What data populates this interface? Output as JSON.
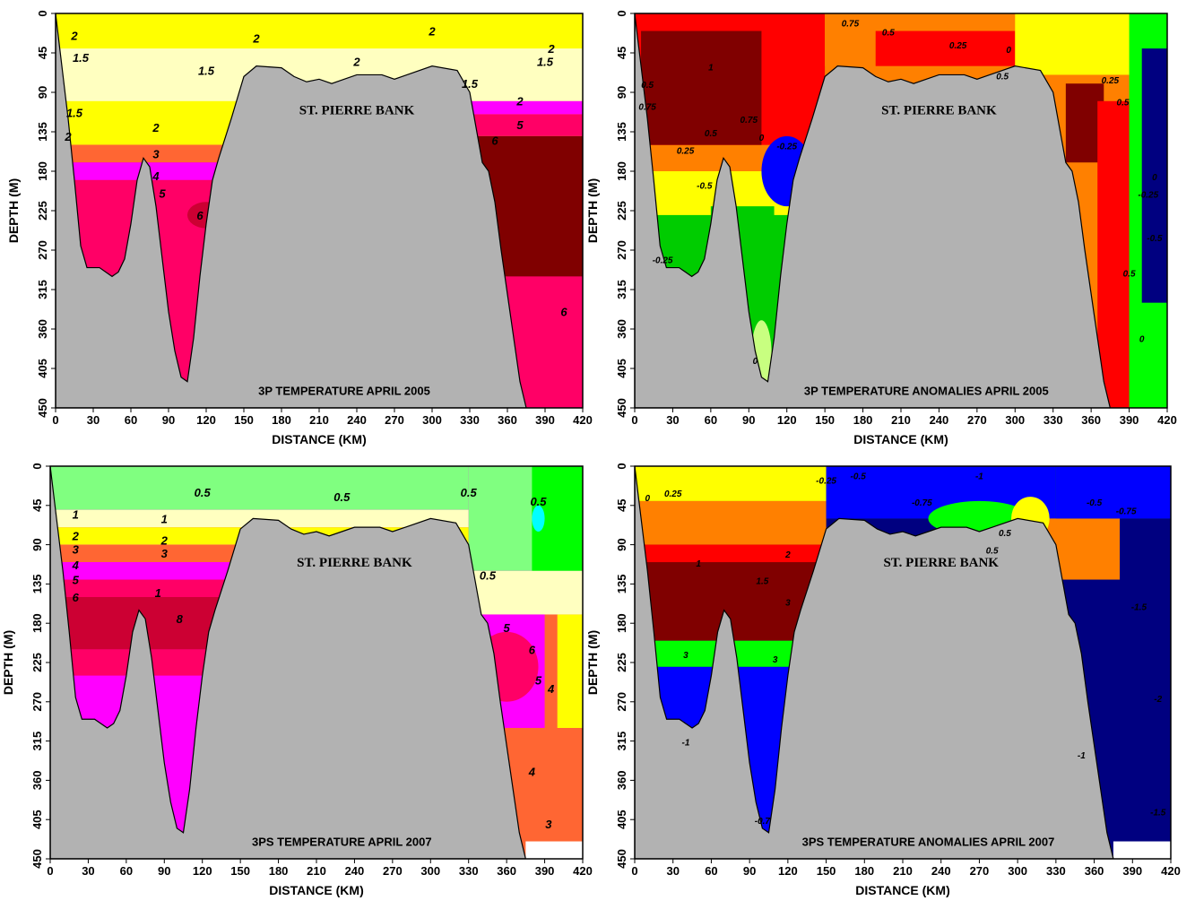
{
  "chart_data": [
    {
      "type": "contour",
      "annotation": "3P TEMPERATURE APRIL 2005",
      "area_label": "ST. PIERRE BANK",
      "x_label": "DISTANCE (KM)",
      "y_label": "DEPTH (M)",
      "xlim": [
        0,
        420
      ],
      "ylim": [
        450,
        0
      ],
      "xticks": [
        0,
        30,
        60,
        90,
        120,
        150,
        180,
        210,
        240,
        270,
        300,
        330,
        360,
        390,
        420
      ],
      "yticks": [
        0,
        45,
        90,
        135,
        180,
        225,
        270,
        315,
        360,
        405,
        450
      ],
      "contour_labels": [
        2,
        1.5,
        1.5,
        1.5,
        2,
        2,
        3,
        4,
        5,
        6,
        2,
        2,
        2,
        1.5,
        2,
        5,
        6,
        6,
        1.5,
        2
      ]
    },
    {
      "type": "contour",
      "annotation": "3P TEMPERATURE ANOMALIES APRIL 2005",
      "area_label": "ST. PIERRE BANK",
      "x_label": "DISTANCE (KM)",
      "y_label": "DEPTH (M)",
      "xlim": [
        0,
        420
      ],
      "ylim": [
        450,
        0
      ],
      "xticks": [
        0,
        30,
        60,
        90,
        120,
        150,
        180,
        210,
        240,
        270,
        300,
        330,
        360,
        390,
        420
      ],
      "yticks": [
        0,
        45,
        90,
        135,
        180,
        225,
        270,
        315,
        360,
        405,
        450
      ],
      "contour_labels": [
        0.75,
        0.5,
        0.25,
        0,
        0.5,
        1,
        0.5,
        0.75,
        0.75,
        0.5,
        0.25,
        0,
        -0.25,
        -0.5,
        0.25,
        0.5,
        0,
        -0.25,
        -0.5,
        0.5,
        0,
        0,
        -0.25
      ]
    },
    {
      "type": "contour",
      "annotation": "3PS TEMPERATURE APRIL 2007",
      "area_label": "ST. PIERRE BANK",
      "x_label": "DISTANCE (KM)",
      "y_label": "DEPTH (M)",
      "xlim": [
        0,
        420
      ],
      "ylim": [
        450,
        0
      ],
      "xticks": [
        0,
        30,
        60,
        90,
        120,
        150,
        180,
        210,
        240,
        270,
        300,
        330,
        360,
        390,
        420
      ],
      "yticks": [
        0,
        45,
        90,
        135,
        180,
        225,
        270,
        315,
        360,
        405,
        450
      ],
      "contour_labels": [
        1,
        2,
        3,
        4,
        5,
        6,
        1,
        2,
        3,
        1,
        8,
        0.5,
        0.5,
        0.5,
        0.5,
        0.5,
        5,
        6,
        5,
        4,
        4,
        3
      ]
    },
    {
      "type": "contour",
      "annotation": "3PS TEMPERATURE ANOMALIES APRIL 2007",
      "area_label": "ST. PIERRE BANK",
      "x_label": "DISTANCE (KM)",
      "y_label": "DEPTH (M)",
      "xlim": [
        0,
        420
      ],
      "ylim": [
        450,
        0
      ],
      "xticks": [
        0,
        30,
        60,
        90,
        120,
        150,
        180,
        210,
        240,
        270,
        300,
        330,
        360,
        390,
        420
      ],
      "yticks": [
        0,
        45,
        90,
        135,
        180,
        225,
        270,
        315,
        360,
        405,
        450
      ],
      "contour_labels": [
        0,
        0.25,
        -0.25,
        -0.5,
        -0.75,
        -1,
        -0.5,
        0.5,
        1,
        1.5,
        2,
        3,
        3,
        3,
        -1,
        -1.5,
        -2,
        -1,
        -1.5,
        -0.7,
        -0.75,
        0.5
      ]
    }
  ]
}
